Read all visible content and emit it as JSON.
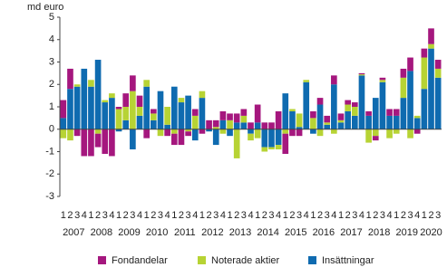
{
  "chart_data": {
    "type": "stacked-bar",
    "y_label": "md euro",
    "categories": [
      "1",
      "2",
      "3",
      "4",
      "1",
      "2",
      "3",
      "4",
      "1",
      "2",
      "3",
      "4",
      "1",
      "2",
      "3",
      "4",
      "1",
      "2",
      "3",
      "4",
      "1",
      "2",
      "3",
      "4",
      "1",
      "2",
      "3",
      "4",
      "1",
      "2",
      "3",
      "4",
      "1",
      "2",
      "3",
      "4",
      "1",
      "2",
      "3",
      "4",
      "1",
      "2",
      "3",
      "4",
      "1",
      "2",
      "3",
      "4",
      "1",
      "2",
      "3",
      "4",
      "1",
      "2",
      "3"
    ],
    "years": [
      "2007",
      "2008",
      "2009",
      "2010",
      "2011",
      "2012",
      "2013",
      "2014",
      "2015",
      "2016",
      "2017",
      "2018",
      "2019",
      "2020"
    ],
    "series": [
      {
        "name": "Fondandelar",
        "color": "#a5177e",
        "values": [
          0.8,
          0.9,
          -0.3,
          -1.2,
          -1.2,
          -0.6,
          -1.1,
          -1.2,
          0.1,
          0.6,
          0.7,
          0.5,
          -0.4,
          0.2,
          0,
          -0.3,
          -0.5,
          -0.7,
          -0.2,
          0.3,
          -0.2,
          0.4,
          0.3,
          0.4,
          0.3,
          0.4,
          0.3,
          0.3,
          0.8,
          0.3,
          0.3,
          0.8,
          -0.9,
          -0.3,
          -0.3,
          0,
          0.3,
          0.3,
          0.3,
          0.4,
          0.3,
          0.2,
          0.2,
          0.05,
          0.2,
          -0.2,
          0.1,
          0.3,
          0.3,
          0.4,
          0.6,
          -0.2,
          0.4,
          0.7,
          0.4
        ]
      },
      {
        "name": "Noterade aktier",
        "color": "#b7d334",
        "values": [
          -0.4,
          -0.5,
          0.1,
          0,
          0.3,
          -0.2,
          0.1,
          0.2,
          0.9,
          0.6,
          1.7,
          0.4,
          0.3,
          0.3,
          -0.3,
          0.8,
          -0.2,
          0.2,
          -0.1,
          0.6,
          0.3,
          0,
          0.1,
          -0.2,
          0.4,
          -1.3,
          0.3,
          -0.3,
          -0.4,
          -0.2,
          -0.1,
          -0.2,
          -0.2,
          0.1,
          0.6,
          0.1,
          0.5,
          -0.3,
          0.1,
          -0.2,
          0.1,
          0.3,
          0.4,
          0.05,
          -0.6,
          -0.3,
          0.1,
          -0.4,
          -0.2,
          0.9,
          -0.4,
          0.1,
          1.4,
          0.2,
          0.4
        ]
      },
      {
        "name": "Insättningar",
        "color": "#0f6bb0",
        "values": [
          0.5,
          1.8,
          1.9,
          2.7,
          1.9,
          3.1,
          1.2,
          1.4,
          -0.1,
          0.4,
          -0.9,
          0.6,
          1.9,
          0.4,
          1.7,
          0.2,
          1.9,
          1.2,
          1.5,
          -0.5,
          1.4,
          -0.1,
          -0.7,
          0.4,
          -0.3,
          0.3,
          0.3,
          -0.2,
          0.3,
          -0.8,
          -0.8,
          -0.7,
          1.6,
          0.8,
          0.1,
          2.1,
          -0.2,
          1.1,
          0.2,
          2.0,
          0.3,
          0.8,
          0.6,
          2.4,
          0.6,
          1.4,
          2.1,
          0.6,
          0.6,
          1.4,
          2.6,
          0.5,
          1.8,
          3.6,
          2.3
        ]
      }
    ],
    "ylim": [
      -3,
      5
    ],
    "yticks": [
      -3,
      -2,
      -1,
      0,
      1,
      2,
      3,
      4,
      5
    ],
    "grid": false,
    "legend": "bottom"
  }
}
